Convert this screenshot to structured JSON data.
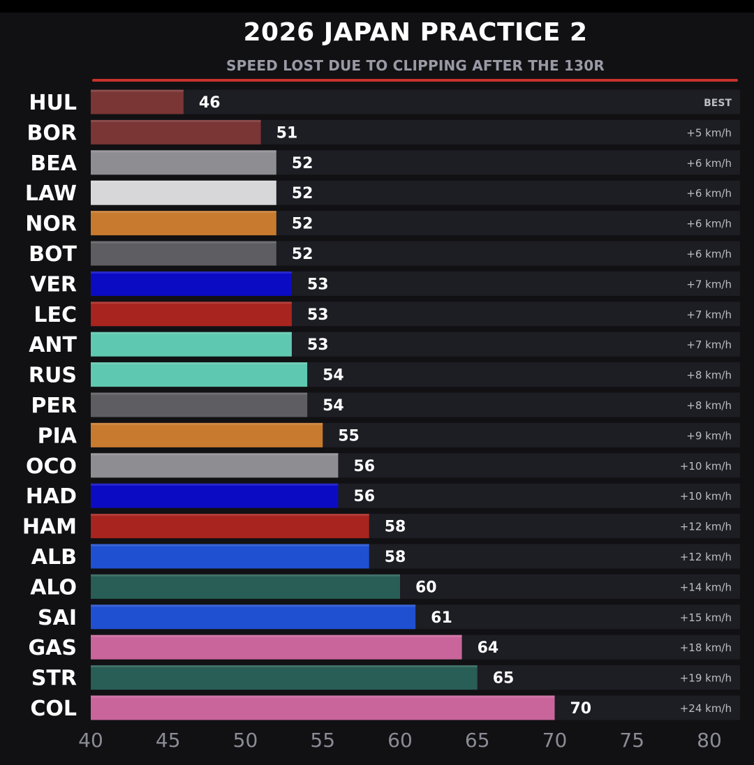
{
  "header": {
    "title": "2026 JAPAN PRACTICE 2",
    "subtitle": "SPEED LOST DUE TO CLIPPING AFTER THE 130R"
  },
  "colors": {
    "background": "#111114",
    "track": "#1d1d24",
    "accent_line": "#c8322b"
  },
  "chart_data": {
    "type": "bar",
    "orientation": "horizontal",
    "title": "2026 JAPAN PRACTICE 2",
    "subtitle": "SPEED LOST DUE TO CLIPPING AFTER THE 130R",
    "xlim": [
      40,
      80
    ],
    "xticks": [
      40,
      45,
      50,
      55,
      60,
      65,
      70,
      75,
      80
    ],
    "grid": false,
    "categories": [
      "HUL",
      "BOR",
      "BEA",
      "LAW",
      "NOR",
      "BOT",
      "VER",
      "LEC",
      "ANT",
      "RUS",
      "PER",
      "PIA",
      "OCO",
      "HAD",
      "HAM",
      "ALB",
      "ALO",
      "SAI",
      "GAS",
      "STR",
      "COL"
    ],
    "values": [
      46,
      51,
      52,
      52,
      52,
      52,
      53,
      53,
      53,
      54,
      54,
      55,
      56,
      56,
      58,
      58,
      60,
      61,
      64,
      65,
      70
    ],
    "value_labels": [
      "46",
      "51",
      "52",
      "52",
      "52",
      "52",
      "53",
      "53",
      "53",
      "54",
      "54",
      "55",
      "56",
      "56",
      "58",
      "58",
      "60",
      "61",
      "64",
      "65",
      "70"
    ],
    "deltas": [
      "BEST",
      "+5 km/h",
      "+6 km/h",
      "+6 km/h",
      "+6 km/h",
      "+6 km/h",
      "+7 km/h",
      "+7 km/h",
      "+7 km/h",
      "+8 km/h",
      "+8 km/h",
      "+9 km/h",
      "+10 km/h",
      "+10 km/h",
      "+12 km/h",
      "+12 km/h",
      "+14 km/h",
      "+15 km/h",
      "+18 km/h",
      "+19 km/h",
      "+24 km/h"
    ],
    "bar_colors": [
      "#7a3535",
      "#7a3535",
      "#8e8e92",
      "#d7d7da",
      "#c87a2e",
      "#5e5e62",
      "#0b0bc4",
      "#a8241e",
      "#5fc8b0",
      "#5fc8b0",
      "#5e5e62",
      "#c87a2e",
      "#8e8e92",
      "#0b0bc4",
      "#a8241e",
      "#2050d2",
      "#285e55",
      "#2050d2",
      "#c9659b",
      "#285e55",
      "#c9659b"
    ]
  }
}
